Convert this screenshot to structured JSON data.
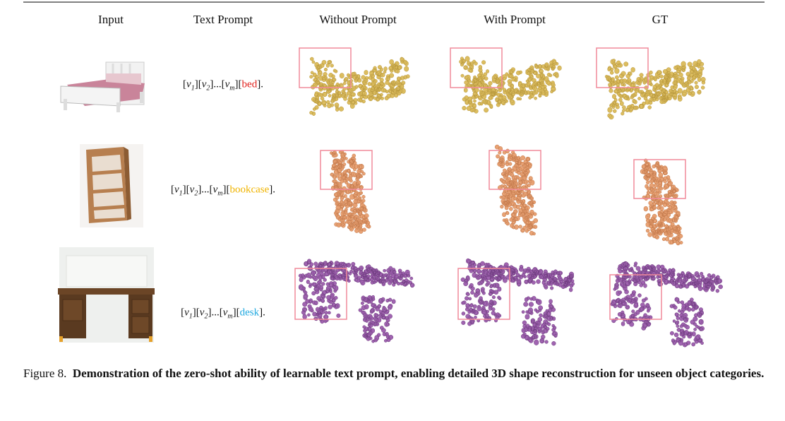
{
  "figure": {
    "headers": [
      "Input",
      "Text Prompt",
      "Without Prompt",
      "With Prompt",
      "GT"
    ],
    "rows": [
      {
        "prompt": [
          "[",
          "v",
          "1",
          "][",
          "v",
          "2",
          "]...[",
          "v",
          "m",
          "][",
          "bed",
          "]."
        ]
      },
      {
        "prompt": [
          "[",
          "v",
          "1",
          "][",
          "v",
          "2",
          "]...[",
          "v",
          "m",
          "][",
          "bookcase",
          "]."
        ]
      },
      {
        "prompt": [
          "[",
          "v",
          "1",
          "][",
          "v",
          "2",
          "]...[",
          "v",
          "m",
          "][",
          "desk",
          "]."
        ]
      }
    ],
    "caption": {
      "label": "Figure 8.",
      "text": "Demonstration of the zero-shot ability of learnable text prompt, enabling detailed 3D shape reconstruction for unseen object categories."
    }
  }
}
